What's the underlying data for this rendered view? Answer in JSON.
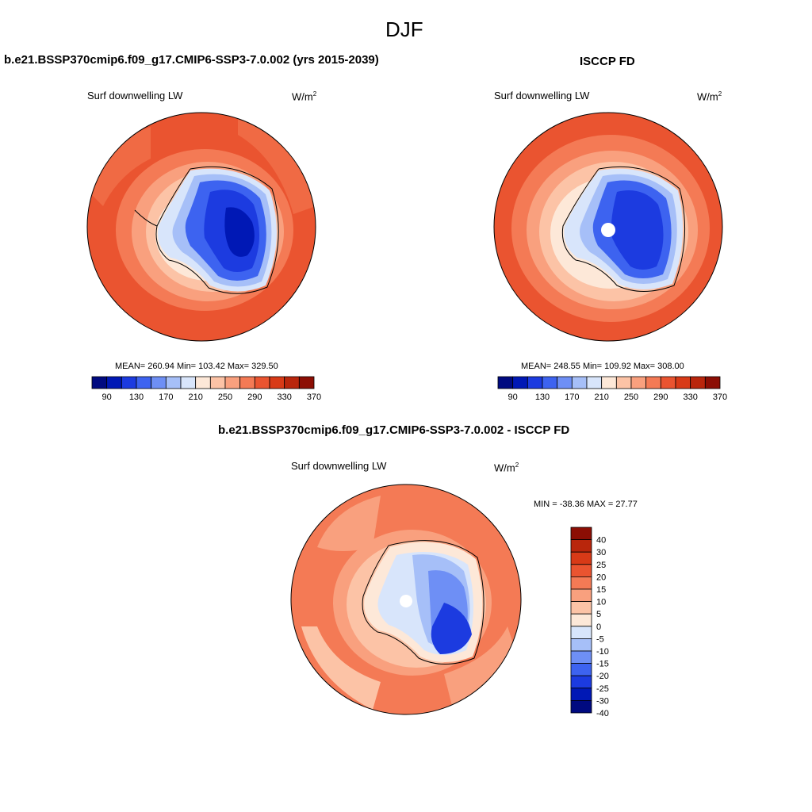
{
  "figure": {
    "title": "DJF"
  },
  "panels": [
    {
      "title": "b.e21.BSSP370cmip6.f09_g17.CMIP6-SSP3-7.0.002 (yrs 2015-2039)",
      "left_label": "Surf downwelling LW",
      "units": "W/m",
      "units_exp": "2",
      "stats": "MEAN= 260.94  Min= 103.42  Max= 329.50"
    },
    {
      "title": "ISCCP FD",
      "left_label": "Surf downwelling LW",
      "units": "W/m",
      "units_exp": "2",
      "stats": "MEAN= 248.55  Min= 109.92  Max= 308.00"
    },
    {
      "title": "b.e21.BSSP370cmip6.f09_g17.CMIP6-SSP3-7.0.002 - ISCCP FD",
      "left_label": "Surf downwelling LW",
      "units": "W/m",
      "units_exp": "2",
      "stats": "MIN = -38.36 MAX =  27.77"
    }
  ],
  "colorbar_abs": {
    "colors": [
      "#000a80",
      "#0018b5",
      "#1c3be0",
      "#3d63f0",
      "#6e8ff5",
      "#a6bff8",
      "#d8e5fb",
      "#fde8d8",
      "#fcc3a6",
      "#f9a07e",
      "#f47a55",
      "#ea5430",
      "#d83a17",
      "#b9260c",
      "#8c0e04"
    ],
    "labels": [
      "90",
      "130",
      "170",
      "210",
      "250",
      "290",
      "330",
      "370"
    ]
  },
  "colorbar_diff": {
    "colors": [
      "#000a80",
      "#0018b5",
      "#1c3be0",
      "#3d63f0",
      "#6e8ff5",
      "#a6bff8",
      "#d8e5fb",
      "#fde8d8",
      "#fcc3a6",
      "#f9a07e",
      "#f47a55",
      "#ea5430",
      "#d83a17",
      "#b9260c",
      "#8c0e04"
    ],
    "labels": [
      "40",
      "30",
      "25",
      "20",
      "15",
      "10",
      "5",
      "0",
      "-5",
      "-10",
      "-15",
      "-20",
      "-25",
      "-30",
      "-40"
    ]
  }
}
